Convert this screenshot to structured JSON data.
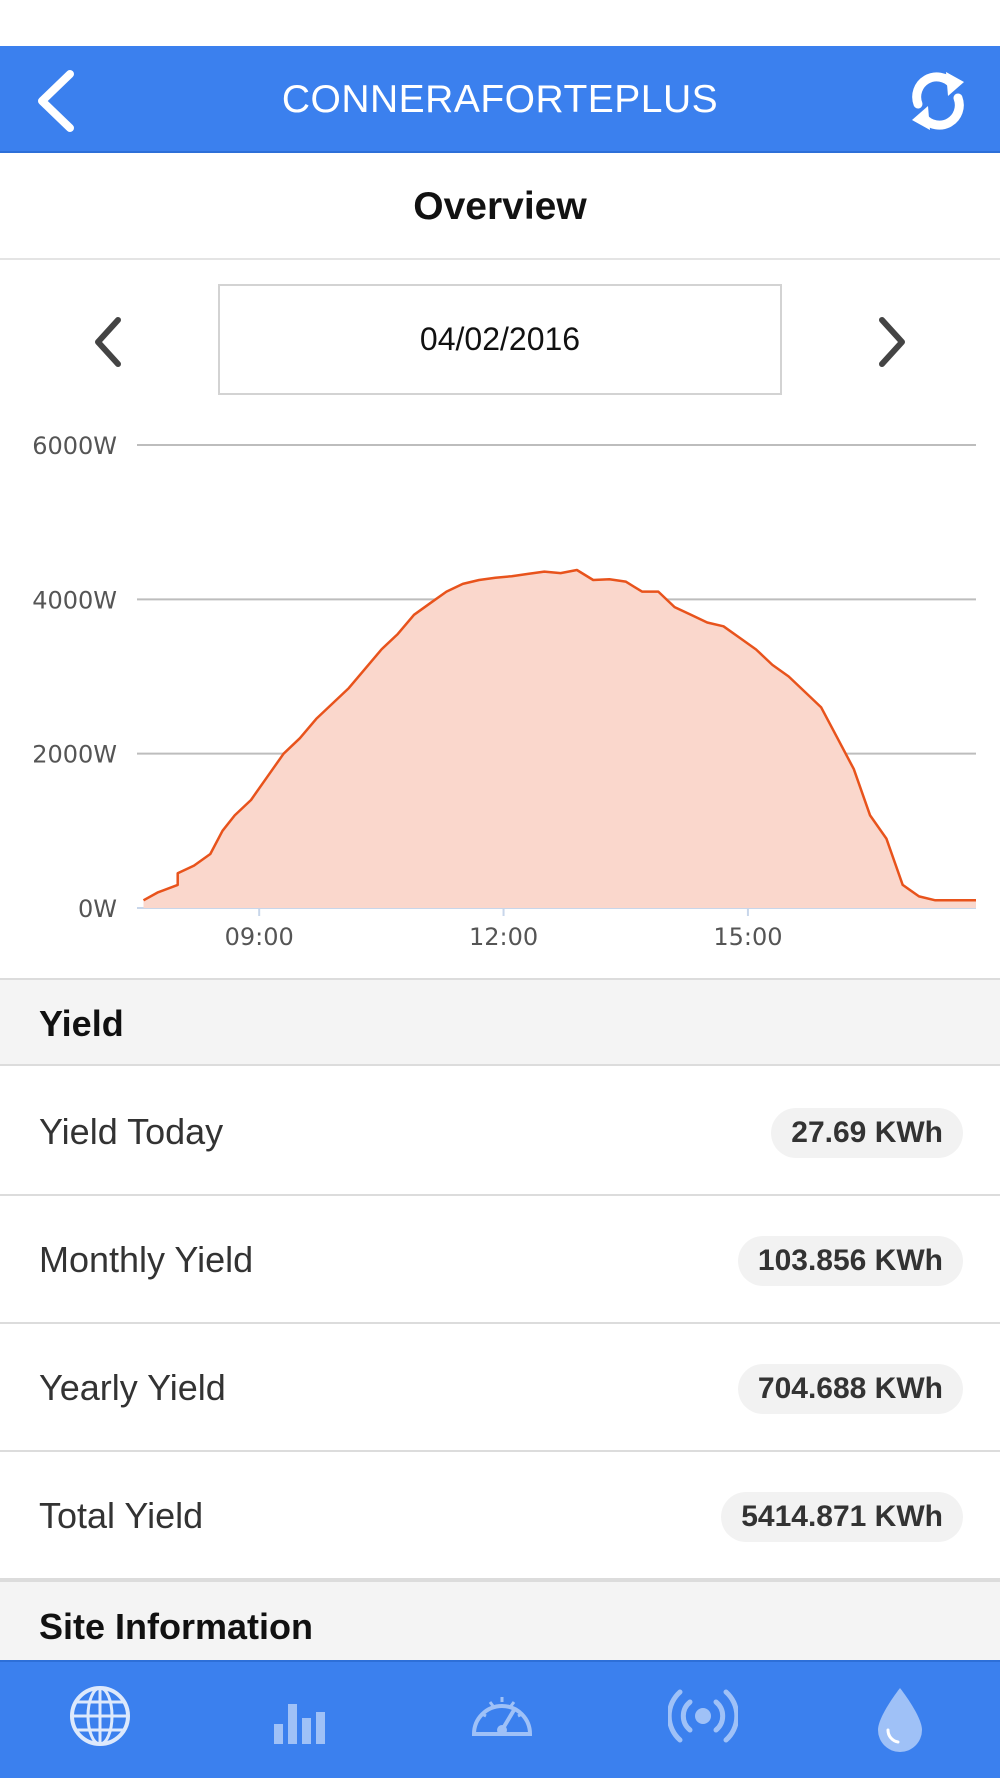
{
  "header": {
    "title": "CONNERAFORTEPLUS"
  },
  "subheader": {
    "title": "Overview"
  },
  "date_selector": {
    "date": "04/02/2016"
  },
  "chart_data": {
    "type": "area",
    "x_unit": "time of day (hours)",
    "y_unit": "W",
    "xlim": [
      7.5,
      18.0
    ],
    "ylim": [
      0,
      6000
    ],
    "y_ticks": [
      "0W",
      "2000W",
      "4000W",
      "6000W"
    ],
    "x_ticks": [
      "09:00",
      "12:00",
      "15:00"
    ],
    "grid": true,
    "line_color": "#e8531c",
    "fill_color": "#fad7cc",
    "x": [
      7.58,
      7.75,
      8.0,
      8.0,
      8.2,
      8.4,
      8.55,
      8.7,
      8.9,
      9.1,
      9.3,
      9.5,
      9.7,
      9.9,
      10.1,
      10.3,
      10.5,
      10.7,
      10.9,
      11.1,
      11.3,
      11.5,
      11.7,
      11.9,
      12.1,
      12.3,
      12.5,
      12.7,
      12.9,
      13.1,
      13.3,
      13.5,
      13.7,
      13.9,
      14.1,
      14.3,
      14.5,
      14.7,
      14.9,
      15.1,
      15.3,
      15.5,
      15.7,
      15.9,
      16.1,
      16.3,
      16.5,
      16.7,
      16.9,
      17.1,
      17.3,
      17.45,
      17.6,
      17.8
    ],
    "values": [
      100,
      200,
      300,
      450,
      550,
      700,
      1000,
      1200,
      1400,
      1700,
      2000,
      2200,
      2450,
      2650,
      2850,
      3100,
      3350,
      3550,
      3800,
      3950,
      4100,
      4200,
      4250,
      4280,
      4300,
      4330,
      4360,
      4340,
      4380,
      4250,
      4260,
      4230,
      4100,
      4100,
      3900,
      3800,
      3700,
      3650,
      3500,
      3350,
      3150,
      3000,
      2800,
      2600,
      2200,
      1800,
      1200,
      900,
      300,
      150,
      100,
      100,
      100,
      100
    ]
  },
  "yield_section": {
    "title": "Yield",
    "rows": [
      {
        "label": "Yield Today",
        "value": "27.69 KWh"
      },
      {
        "label": "Monthly Yield",
        "value": "103.856 KWh"
      },
      {
        "label": "Yearly Yield",
        "value": "704.688 KWh"
      },
      {
        "label": "Total Yield",
        "value": "5414.871 KWh"
      }
    ]
  },
  "site_section": {
    "title": "Site Information"
  },
  "tabbar": {
    "icons": [
      "globe-icon",
      "bar-chart-icon",
      "speedometer-icon",
      "broadcast-icon",
      "water-drop-icon"
    ]
  }
}
